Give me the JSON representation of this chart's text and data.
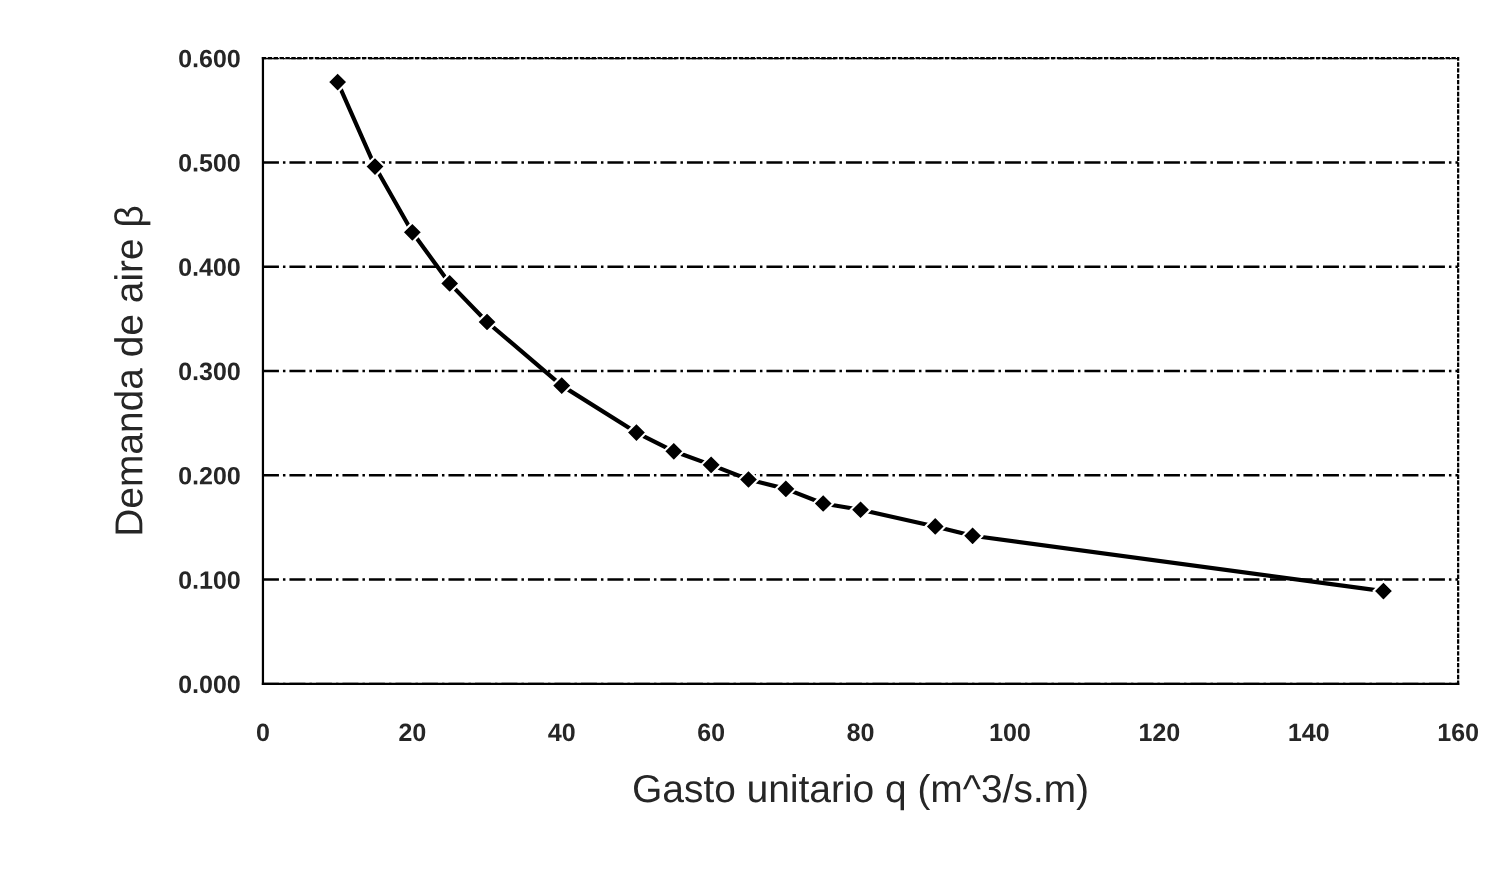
{
  "chart_data": {
    "type": "line",
    "xlabel": "Gasto unitario q (m^3/s.m)",
    "ylabel": "Demanda de aire β",
    "x": [
      10,
      15,
      20,
      25,
      30,
      40,
      50,
      55,
      60,
      65,
      70,
      75,
      80,
      90,
      95,
      150
    ],
    "series": [
      {
        "color": "#000000",
        "values": [
          0.577,
          0.496,
          0.433,
          0.384,
          0.347,
          0.286,
          0.241,
          0.223,
          0.21,
          0.196,
          0.187,
          0.173,
          0.167,
          0.151,
          0.142,
          0.089
        ]
      }
    ],
    "xlim": [
      0,
      160
    ],
    "xticks": [
      0,
      20,
      40,
      60,
      80,
      100,
      120,
      140,
      160
    ],
    "ylim": [
      0,
      0.6
    ],
    "yticks": [
      {
        "value": 0,
        "label": "0.000"
      },
      {
        "value": 0.1,
        "label": "0.100"
      },
      {
        "value": 0.2,
        "label": "0.200"
      },
      {
        "value": 0.3,
        "label": "0.300"
      },
      {
        "value": 0.4,
        "label": "0.400"
      },
      {
        "value": 0.5,
        "label": "0.500"
      },
      {
        "value": 0.6,
        "label": "0.600"
      }
    ],
    "grid": "y",
    "marker": "diamond",
    "line_style": "solid",
    "legend": false
  }
}
